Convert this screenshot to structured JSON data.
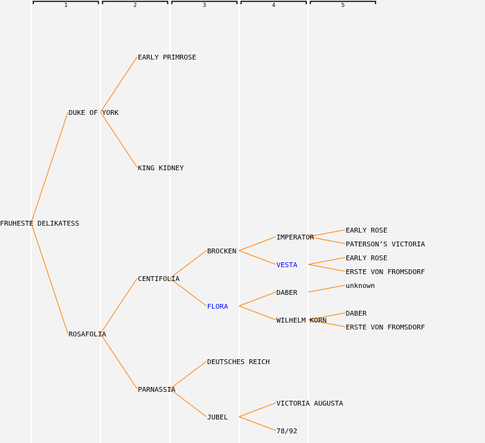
{
  "colors": {
    "background": "#f3f3f3",
    "line": "#ff8000",
    "highlight": "#0000ff",
    "text": "#000000",
    "separator": "#ffffff"
  },
  "generation_headers": [
    "1",
    "2",
    "3",
    "4",
    "5"
  ],
  "tree": {
    "name": "FRUHESTE DELIKATESS",
    "parents": [
      {
        "name": "DUKE OF YORK",
        "parents": [
          {
            "name": "EARLY PRIMROSE"
          },
          {
            "name": "KING KIDNEY"
          }
        ]
      },
      {
        "name": "ROSAFOLIA",
        "parents": [
          {
            "name": "CENTIFOLIA",
            "parents": [
              {
                "name": "BROCKEN",
                "parents": [
                  {
                    "name": "IMPERATOR",
                    "parents": [
                      {
                        "name": "EARLY ROSE"
                      },
                      {
                        "name": "PATERSON’S VICTORIA"
                      }
                    ]
                  },
                  {
                    "name": "VESTA",
                    "highlight": true,
                    "parents": [
                      {
                        "name": "EARLY ROSE"
                      },
                      {
                        "name": "ERSTE VON FROMSDORF"
                      }
                    ]
                  }
                ]
              },
              {
                "name": "FLORA",
                "highlight": true,
                "parents": [
                  {
                    "name": "DABER",
                    "parents": [
                      {
                        "name": "unknown"
                      },
                      null
                    ]
                  },
                  {
                    "name": "WILHELM KORN",
                    "parents": [
                      {
                        "name": "DABER"
                      },
                      {
                        "name": "ERSTE VON FROMSDORF"
                      }
                    ]
                  }
                ]
              }
            ]
          },
          {
            "name": "PARNASSIA",
            "parents": [
              {
                "name": "DEUTSCHES REICH"
              },
              {
                "name": "JUBEL",
                "parents": [
                  {
                    "name": "VICTORIA AUGUSTA"
                  },
                  {
                    "name": "78/92"
                  }
                ]
              }
            ]
          }
        ]
      }
    ]
  }
}
